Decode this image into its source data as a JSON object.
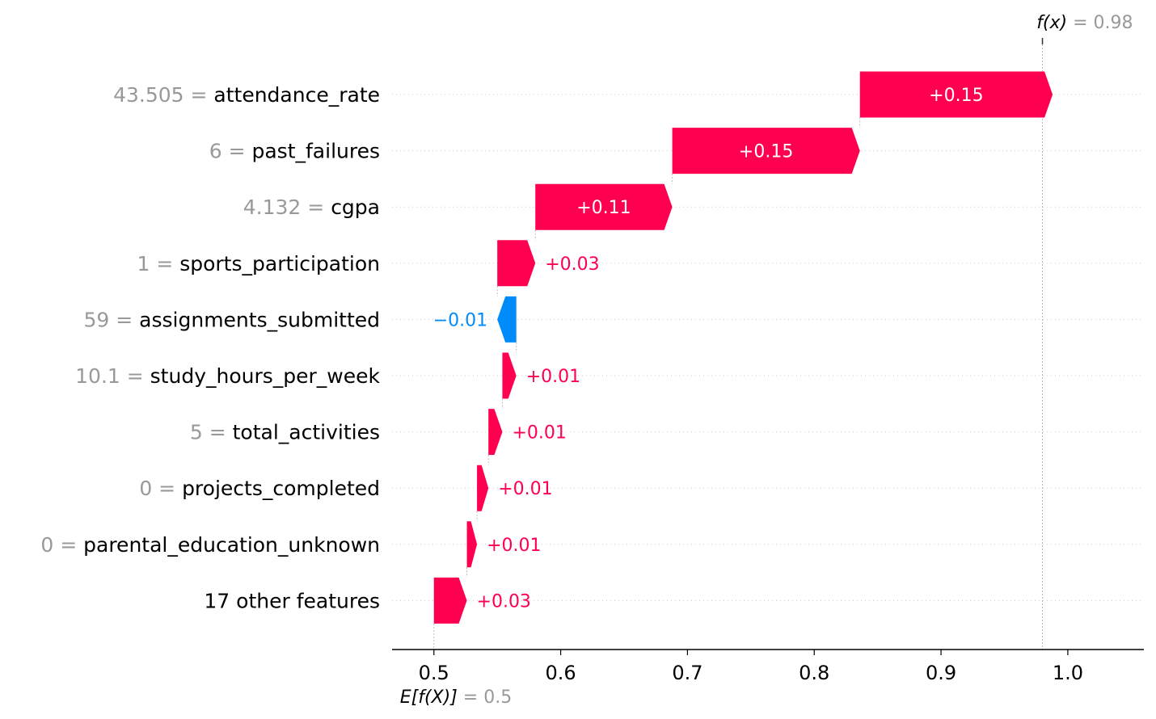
{
  "chart_data": {
    "type": "waterfall",
    "base_value": 0.5,
    "base_value_label": "0.5",
    "final_value": 0.98,
    "final_value_label": "0.98",
    "base_label": "E[f(X)]",
    "final_label": "f(x)",
    "xlim": [
      0.467,
      1.06
    ],
    "xticks": [
      0.5,
      0.6,
      0.7,
      0.8,
      0.9,
      1.0
    ],
    "xtick_labels": [
      "0.5",
      "0.6",
      "0.7",
      "0.8",
      "0.9",
      "1.0"
    ],
    "features": [
      {
        "value": "43.505",
        "name": "attendance_rate",
        "contribution": 0.152,
        "label": "+0.15"
      },
      {
        "value": "6",
        "name": "past_failures",
        "contribution": 0.148,
        "label": "+0.15"
      },
      {
        "value": "4.132",
        "name": "cgpa",
        "contribution": 0.108,
        "label": "+0.11"
      },
      {
        "value": "1",
        "name": "sports_participation",
        "contribution": 0.03,
        "label": "+0.03"
      },
      {
        "value": "59",
        "name": "assignments_submitted",
        "contribution": -0.015,
        "label": "−0.01"
      },
      {
        "value": "10.1",
        "name": "study_hours_per_week",
        "contribution": 0.011,
        "label": "+0.01"
      },
      {
        "value": "5",
        "name": "total_activities",
        "contribution": 0.011,
        "label": "+0.01"
      },
      {
        "value": "0",
        "name": "projects_completed",
        "contribution": 0.009,
        "label": "+0.01"
      },
      {
        "value": "0",
        "name": "parental_education_unknown",
        "contribution": 0.008,
        "label": "+0.01"
      },
      {
        "value": "",
        "name": "17 other features",
        "contribution": 0.026,
        "label": "+0.03"
      }
    ],
    "colors": {
      "positive": "#ff0051",
      "negative": "#008bfb",
      "value_text": "#999999",
      "name_text": "#000000"
    }
  }
}
